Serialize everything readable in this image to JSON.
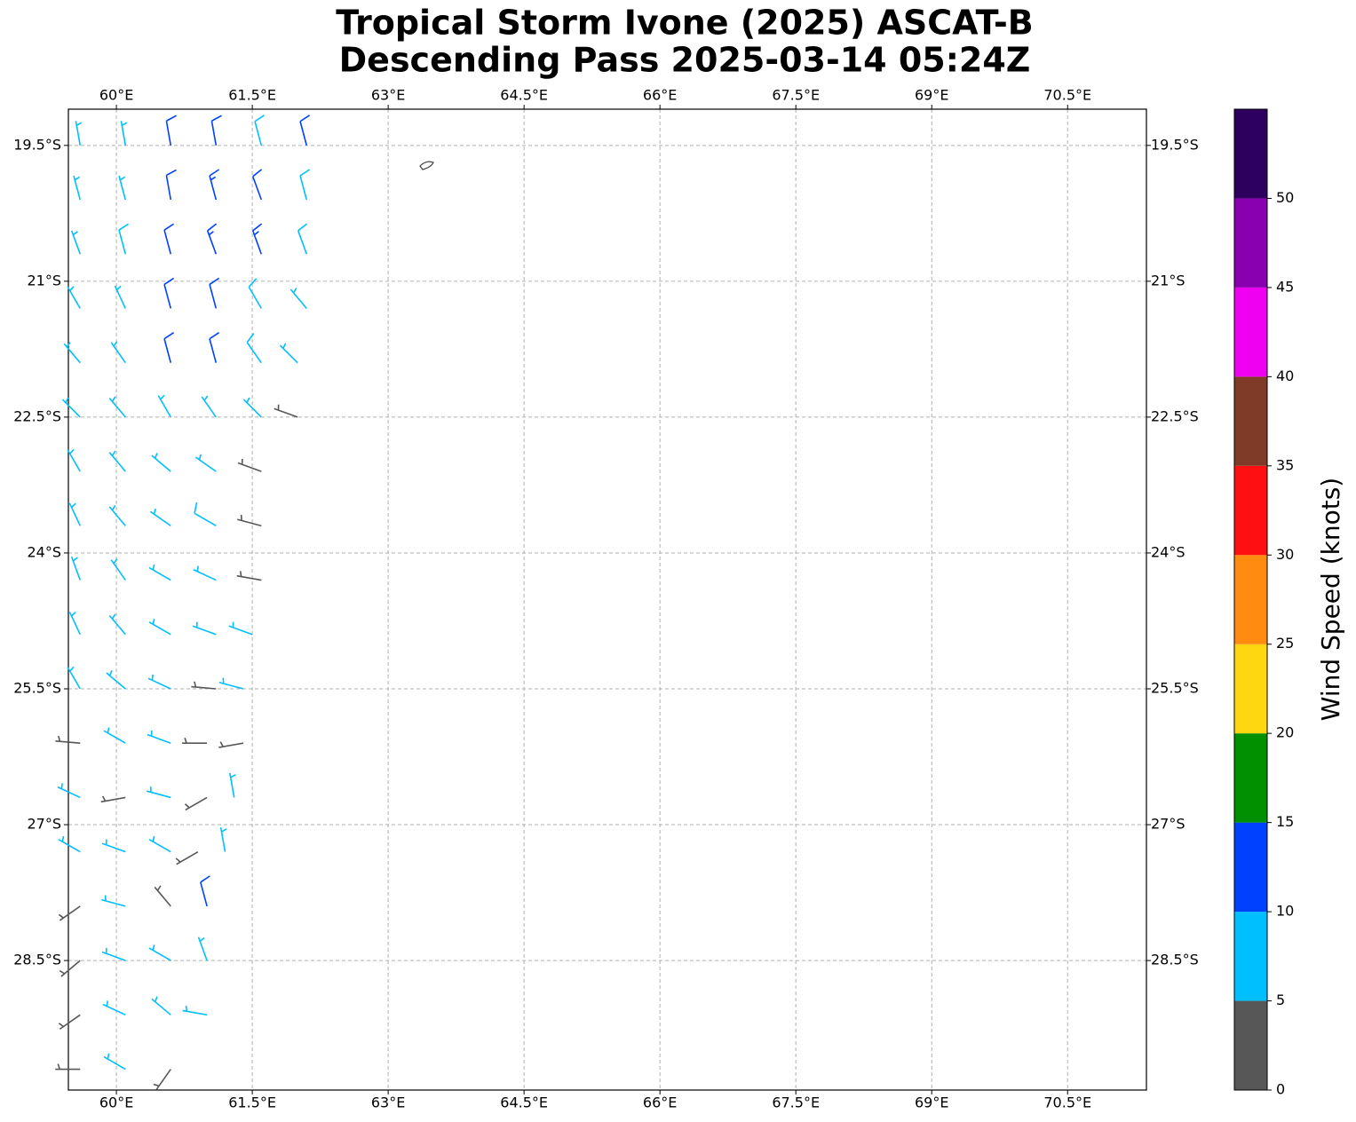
{
  "chart_data": {
    "type": "barbs",
    "title": "Tropical Storm Ivone (2025) ASCAT-B",
    "subtitle": "Descending Pass 2025-03-14 05:24Z",
    "xlim": [
      59.47,
      71.37
    ],
    "ylim": [
      -29.93,
      -19.1
    ],
    "xticks": [
      {
        "value": 60,
        "label": "60°E"
      },
      {
        "value": 61.5,
        "label": "61.5°E"
      },
      {
        "value": 63,
        "label": "63°E"
      },
      {
        "value": 64.5,
        "label": "64.5°E"
      },
      {
        "value": 66,
        "label": "66°E"
      },
      {
        "value": 67.5,
        "label": "67.5°E"
      },
      {
        "value": 69,
        "label": "69°E"
      },
      {
        "value": 70.5,
        "label": "70.5°E"
      }
    ],
    "yticks": [
      {
        "value": -19.5,
        "label": "19.5°S"
      },
      {
        "value": -21,
        "label": "21°S"
      },
      {
        "value": -22.5,
        "label": "22.5°S"
      },
      {
        "value": -24,
        "label": "24°S"
      },
      {
        "value": -25.5,
        "label": "25.5°S"
      },
      {
        "value": -27,
        "label": "27°S"
      },
      {
        "value": -28.5,
        "label": "28.5°S"
      }
    ],
    "grid": true,
    "colorbar": {
      "label": "Wind Speed (knots)",
      "boundaries": [
        0,
        5,
        10,
        15,
        20,
        25,
        30,
        35,
        40,
        45,
        50,
        55
      ],
      "colors": [
        "#575757",
        "#00bfff",
        "#0040ff",
        "#009000",
        "#ffd710",
        "#ff8c10",
        "#ff1010",
        "#7f3b28",
        "#f000f0",
        "#8800b0",
        "#2d0060"
      ],
      "ticks": [
        0,
        5,
        10,
        15,
        20,
        25,
        30,
        35,
        40,
        45,
        50
      ]
    },
    "barbs": [
      {
        "lon": 59.6,
        "lat": -19.5,
        "speed": 7,
        "direction": 350
      },
      {
        "lon": 60.1,
        "lat": -19.5,
        "speed": 7,
        "direction": 350
      },
      {
        "lon": 60.6,
        "lat": -19.5,
        "speed": 12,
        "direction": 350
      },
      {
        "lon": 61.1,
        "lat": -19.5,
        "speed": 12,
        "direction": 350
      },
      {
        "lon": 61.6,
        "lat": -19.5,
        "speed": 8,
        "direction": 345
      },
      {
        "lon": 62.1,
        "lat": -19.5,
        "speed": 12,
        "direction": 345
      },
      {
        "lon": 59.6,
        "lat": -20.1,
        "speed": 6,
        "direction": 345
      },
      {
        "lon": 60.1,
        "lat": -20.1,
        "speed": 7,
        "direction": 345
      },
      {
        "lon": 60.6,
        "lat": -20.1,
        "speed": 12,
        "direction": 350
      },
      {
        "lon": 61.1,
        "lat": -20.1,
        "speed": 13,
        "direction": 345
      },
      {
        "lon": 61.6,
        "lat": -20.1,
        "speed": 12,
        "direction": 340
      },
      {
        "lon": 62.1,
        "lat": -20.1,
        "speed": 8,
        "direction": 345
      },
      {
        "lon": 59.6,
        "lat": -20.7,
        "speed": 6,
        "direction": 340
      },
      {
        "lon": 60.1,
        "lat": -20.7,
        "speed": 8,
        "direction": 345
      },
      {
        "lon": 60.6,
        "lat": -20.7,
        "speed": 12,
        "direction": 345
      },
      {
        "lon": 61.1,
        "lat": -20.7,
        "speed": 13,
        "direction": 340
      },
      {
        "lon": 61.6,
        "lat": -20.7,
        "speed": 13,
        "direction": 340
      },
      {
        "lon": 62.1,
        "lat": -20.7,
        "speed": 8,
        "direction": 340
      },
      {
        "lon": 59.6,
        "lat": -21.3,
        "speed": 6,
        "direction": 330
      },
      {
        "lon": 60.1,
        "lat": -21.3,
        "speed": 7,
        "direction": 335
      },
      {
        "lon": 60.6,
        "lat": -21.3,
        "speed": 12,
        "direction": 345
      },
      {
        "lon": 61.1,
        "lat": -21.3,
        "speed": 12,
        "direction": 345
      },
      {
        "lon": 61.6,
        "lat": -21.3,
        "speed": 8,
        "direction": 330
      },
      {
        "lon": 62.1,
        "lat": -21.3,
        "speed": 7,
        "direction": 320
      },
      {
        "lon": 59.6,
        "lat": -21.9,
        "speed": 7,
        "direction": 320
      },
      {
        "lon": 60.1,
        "lat": -21.9,
        "speed": 7,
        "direction": 325
      },
      {
        "lon": 60.6,
        "lat": -21.9,
        "speed": 11,
        "direction": 345
      },
      {
        "lon": 61.1,
        "lat": -21.9,
        "speed": 12,
        "direction": 345
      },
      {
        "lon": 61.6,
        "lat": -21.9,
        "speed": 8,
        "direction": 325
      },
      {
        "lon": 62.0,
        "lat": -21.9,
        "speed": 7,
        "direction": 315
      },
      {
        "lon": 59.6,
        "lat": -22.5,
        "speed": 7,
        "direction": 315
      },
      {
        "lon": 60.1,
        "lat": -22.5,
        "speed": 6,
        "direction": 320
      },
      {
        "lon": 60.6,
        "lat": -22.5,
        "speed": 7,
        "direction": 330
      },
      {
        "lon": 61.1,
        "lat": -22.5,
        "speed": 7,
        "direction": 325
      },
      {
        "lon": 61.6,
        "lat": -22.5,
        "speed": 7,
        "direction": 315
      },
      {
        "lon": 62.0,
        "lat": -22.5,
        "speed": 4,
        "direction": 290
      },
      {
        "lon": 59.6,
        "lat": -23.1,
        "speed": 6,
        "direction": 330
      },
      {
        "lon": 60.1,
        "lat": -23.1,
        "speed": 7,
        "direction": 320
      },
      {
        "lon": 60.6,
        "lat": -23.1,
        "speed": 7,
        "direction": 310
      },
      {
        "lon": 61.1,
        "lat": -23.1,
        "speed": 7,
        "direction": 305
      },
      {
        "lon": 61.6,
        "lat": -23.1,
        "speed": 4,
        "direction": 290
      },
      {
        "lon": 59.6,
        "lat": -23.7,
        "speed": 7,
        "direction": 335
      },
      {
        "lon": 60.1,
        "lat": -23.7,
        "speed": 7,
        "direction": 320
      },
      {
        "lon": 60.6,
        "lat": -23.7,
        "speed": 7,
        "direction": 305
      },
      {
        "lon": 61.1,
        "lat": -23.7,
        "speed": 8,
        "direction": 300
      },
      {
        "lon": 61.6,
        "lat": -23.7,
        "speed": 4,
        "direction": 285
      },
      {
        "lon": 59.6,
        "lat": -24.3,
        "speed": 7,
        "direction": 340
      },
      {
        "lon": 60.1,
        "lat": -24.3,
        "speed": 7,
        "direction": 325
      },
      {
        "lon": 60.6,
        "lat": -24.3,
        "speed": 7,
        "direction": 300
      },
      {
        "lon": 61.1,
        "lat": -24.3,
        "speed": 7,
        "direction": 295
      },
      {
        "lon": 61.6,
        "lat": -24.3,
        "speed": 4,
        "direction": 280
      },
      {
        "lon": 59.6,
        "lat": -24.9,
        "speed": 7,
        "direction": 335
      },
      {
        "lon": 60.1,
        "lat": -24.9,
        "speed": 7,
        "direction": 320
      },
      {
        "lon": 60.6,
        "lat": -24.9,
        "speed": 7,
        "direction": 300
      },
      {
        "lon": 61.1,
        "lat": -24.9,
        "speed": 7,
        "direction": 290
      },
      {
        "lon": 61.5,
        "lat": -24.9,
        "speed": 7,
        "direction": 290
      },
      {
        "lon": 59.6,
        "lat": -25.5,
        "speed": 6,
        "direction": 330
      },
      {
        "lon": 60.1,
        "lat": -25.5,
        "speed": 7,
        "direction": 310
      },
      {
        "lon": 60.6,
        "lat": -25.5,
        "speed": 7,
        "direction": 295
      },
      {
        "lon": 61.1,
        "lat": -25.5,
        "speed": 4,
        "direction": 275
      },
      {
        "lon": 61.4,
        "lat": -25.5,
        "speed": 7,
        "direction": 285
      },
      {
        "lon": 59.6,
        "lat": -26.1,
        "speed": 3,
        "direction": 275
      },
      {
        "lon": 60.1,
        "lat": -26.1,
        "speed": 7,
        "direction": 300
      },
      {
        "lon": 60.6,
        "lat": -26.1,
        "speed": 7,
        "direction": 290
      },
      {
        "lon": 61.0,
        "lat": -26.1,
        "speed": 3,
        "direction": 270
      },
      {
        "lon": 61.4,
        "lat": -26.1,
        "speed": 3,
        "direction": 260
      },
      {
        "lon": 59.6,
        "lat": -26.7,
        "speed": 6,
        "direction": 295
      },
      {
        "lon": 60.1,
        "lat": -26.7,
        "speed": 3,
        "direction": 260
      },
      {
        "lon": 60.6,
        "lat": -26.7,
        "speed": 7,
        "direction": 285
      },
      {
        "lon": 61.0,
        "lat": -26.7,
        "speed": 4,
        "direction": 240
      },
      {
        "lon": 61.3,
        "lat": -26.7,
        "speed": 7,
        "direction": 350
      },
      {
        "lon": 59.6,
        "lat": -27.3,
        "speed": 7,
        "direction": 300
      },
      {
        "lon": 60.1,
        "lat": -27.3,
        "speed": 7,
        "direction": 290
      },
      {
        "lon": 60.6,
        "lat": -27.3,
        "speed": 6,
        "direction": 300
      },
      {
        "lon": 60.9,
        "lat": -27.3,
        "speed": 3,
        "direction": 240
      },
      {
        "lon": 61.2,
        "lat": -27.3,
        "speed": 7,
        "direction": 350
      },
      {
        "lon": 59.6,
        "lat": -27.9,
        "speed": 3,
        "direction": 235
      },
      {
        "lon": 60.1,
        "lat": -27.9,
        "speed": 7,
        "direction": 285
      },
      {
        "lon": 60.6,
        "lat": -27.9,
        "speed": 4,
        "direction": 320
      },
      {
        "lon": 61.0,
        "lat": -27.9,
        "speed": 12,
        "direction": 345
      },
      {
        "lon": 59.6,
        "lat": -28.5,
        "speed": 3,
        "direction": 230
      },
      {
        "lon": 60.1,
        "lat": -28.5,
        "speed": 7,
        "direction": 290
      },
      {
        "lon": 60.6,
        "lat": -28.5,
        "speed": 7,
        "direction": 300
      },
      {
        "lon": 61.0,
        "lat": -28.5,
        "speed": 7,
        "direction": 340
      },
      {
        "lon": 59.6,
        "lat": -29.1,
        "speed": 3,
        "direction": 235
      },
      {
        "lon": 60.1,
        "lat": -29.1,
        "speed": 7,
        "direction": 295
      },
      {
        "lon": 60.6,
        "lat": -29.1,
        "speed": 7,
        "direction": 310
      },
      {
        "lon": 61.0,
        "lat": -29.1,
        "speed": 7,
        "direction": 280
      },
      {
        "lon": 59.6,
        "lat": -29.7,
        "speed": 3,
        "direction": 270
      },
      {
        "lon": 60.1,
        "lat": -29.7,
        "speed": 7,
        "direction": 300
      },
      {
        "lon": 60.6,
        "lat": -29.7,
        "speed": 3,
        "direction": 215
      }
    ]
  }
}
